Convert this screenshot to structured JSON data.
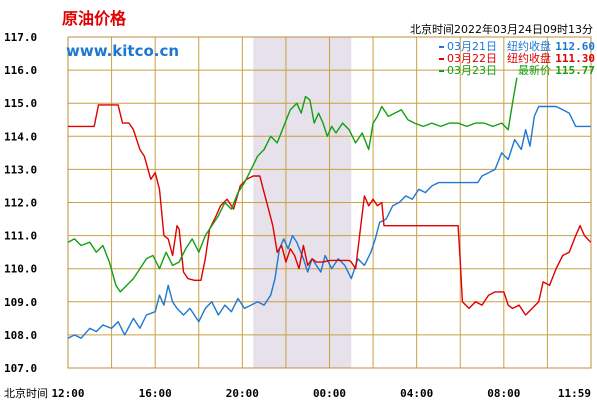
{
  "title": "原油价格",
  "brand": "www.kitco.cn",
  "timestamp": "北京时间2022年03月24日09时13分",
  "chart_data": {
    "type": "line",
    "xlabel": "北京时间",
    "x_ticks": [
      "12:00",
      "16:00",
      "20:00",
      "00:00",
      "04:00",
      "08:00",
      "11:59"
    ],
    "ylim": [
      107.0,
      117.0
    ],
    "y_ticks": [
      "107.0",
      "108.0",
      "109.0",
      "110.0",
      "111.0",
      "112.0",
      "113.0",
      "114.0",
      "115.0",
      "116.0",
      "117.0"
    ],
    "grid": true,
    "shaded_range_hours": [
      8.5,
      13.0
    ],
    "legend_position": "top-right",
    "series": [
      {
        "date": "03月21日",
        "label": "纽约收盘",
        "value": "112.60",
        "color": "#1e78d2",
        "points": [
          [
            0,
            107.9
          ],
          [
            0.3,
            108.0
          ],
          [
            0.6,
            107.9
          ],
          [
            1.0,
            108.2
          ],
          [
            1.3,
            108.1
          ],
          [
            1.6,
            108.3
          ],
          [
            2.0,
            108.2
          ],
          [
            2.3,
            108.4
          ],
          [
            2.6,
            108.0
          ],
          [
            3.0,
            108.5
          ],
          [
            3.3,
            108.2
          ],
          [
            3.6,
            108.6
          ],
          [
            4.0,
            108.7
          ],
          [
            4.2,
            109.2
          ],
          [
            4.4,
            108.9
          ],
          [
            4.6,
            109.5
          ],
          [
            4.8,
            109.0
          ],
          [
            5.0,
            108.8
          ],
          [
            5.3,
            108.6
          ],
          [
            5.6,
            108.8
          ],
          [
            6.0,
            108.4
          ],
          [
            6.3,
            108.8
          ],
          [
            6.6,
            109.0
          ],
          [
            6.9,
            108.6
          ],
          [
            7.2,
            108.9
          ],
          [
            7.5,
            108.7
          ],
          [
            7.8,
            109.1
          ],
          [
            8.1,
            108.8
          ],
          [
            8.4,
            108.9
          ],
          [
            8.7,
            109.0
          ],
          [
            9.0,
            108.9
          ],
          [
            9.3,
            109.2
          ],
          [
            9.5,
            109.7
          ],
          [
            9.7,
            110.6
          ],
          [
            9.9,
            110.9
          ],
          [
            10.1,
            110.6
          ],
          [
            10.3,
            111.0
          ],
          [
            10.5,
            110.8
          ],
          [
            10.8,
            110.3
          ],
          [
            11.0,
            109.9
          ],
          [
            11.2,
            110.3
          ],
          [
            11.4,
            110.1
          ],
          [
            11.6,
            109.9
          ],
          [
            11.8,
            110.4
          ],
          [
            12.1,
            110.0
          ],
          [
            12.4,
            110.3
          ],
          [
            12.7,
            110.1
          ],
          [
            13.0,
            109.7
          ],
          [
            13.3,
            110.3
          ],
          [
            13.6,
            110.1
          ],
          [
            13.9,
            110.5
          ],
          [
            14.1,
            110.9
          ],
          [
            14.3,
            111.4
          ],
          [
            14.6,
            111.5
          ],
          [
            14.9,
            111.9
          ],
          [
            15.2,
            112.0
          ],
          [
            15.5,
            112.2
          ],
          [
            15.8,
            112.1
          ],
          [
            16.1,
            112.4
          ],
          [
            16.4,
            112.3
          ],
          [
            16.7,
            112.5
          ],
          [
            17.0,
            112.6
          ],
          [
            17.5,
            112.6
          ],
          [
            18.0,
            112.6
          ],
          [
            18.5,
            112.6
          ],
          [
            18.8,
            112.6
          ],
          [
            19.0,
            112.8
          ],
          [
            19.3,
            112.9
          ],
          [
            19.6,
            113.0
          ],
          [
            19.9,
            113.5
          ],
          [
            20.2,
            113.3
          ],
          [
            20.5,
            113.9
          ],
          [
            20.8,
            113.6
          ],
          [
            21.0,
            114.2
          ],
          [
            21.2,
            113.7
          ],
          [
            21.4,
            114.6
          ],
          [
            21.6,
            114.9
          ],
          [
            22.0,
            114.9
          ],
          [
            22.4,
            114.9
          ],
          [
            22.7,
            114.8
          ],
          [
            23.0,
            114.7
          ],
          [
            23.3,
            114.3
          ],
          [
            23.98,
            114.3
          ]
        ]
      },
      {
        "date": "03月22日",
        "label": "纽约收盘",
        "value": "111.30",
        "color": "#e00000",
        "points": [
          [
            0,
            114.3
          ],
          [
            1.2,
            114.3
          ],
          [
            1.4,
            114.95
          ],
          [
            2.0,
            114.95
          ],
          [
            2.3,
            114.95
          ],
          [
            2.5,
            114.4
          ],
          [
            2.8,
            114.4
          ],
          [
            3.0,
            114.2
          ],
          [
            3.3,
            113.6
          ],
          [
            3.5,
            113.4
          ],
          [
            3.8,
            112.7
          ],
          [
            4.0,
            112.9
          ],
          [
            4.2,
            112.4
          ],
          [
            4.4,
            111.0
          ],
          [
            4.6,
            110.9
          ],
          [
            4.8,
            110.4
          ],
          [
            5.0,
            111.3
          ],
          [
            5.1,
            111.2
          ],
          [
            5.3,
            109.9
          ],
          [
            5.5,
            109.7
          ],
          [
            5.8,
            109.65
          ],
          [
            6.1,
            109.65
          ],
          [
            6.3,
            110.3
          ],
          [
            6.5,
            111.2
          ],
          [
            6.8,
            111.6
          ],
          [
            7.0,
            111.9
          ],
          [
            7.3,
            112.1
          ],
          [
            7.6,
            111.8
          ],
          [
            7.9,
            112.5
          ],
          [
            8.2,
            112.7
          ],
          [
            8.5,
            112.8
          ],
          [
            8.8,
            112.8
          ],
          [
            9.0,
            112.3
          ],
          [
            9.2,
            111.8
          ],
          [
            9.4,
            111.3
          ],
          [
            9.6,
            110.5
          ],
          [
            9.8,
            110.7
          ],
          [
            10.0,
            110.2
          ],
          [
            10.2,
            110.6
          ],
          [
            10.4,
            110.4
          ],
          [
            10.6,
            110.0
          ],
          [
            10.8,
            110.7
          ],
          [
            11.0,
            110.1
          ],
          [
            11.2,
            110.3
          ],
          [
            11.4,
            110.2
          ],
          [
            11.7,
            110.2
          ],
          [
            12.0,
            110.25
          ],
          [
            12.3,
            110.25
          ],
          [
            12.6,
            110.25
          ],
          [
            12.9,
            110.25
          ],
          [
            13.0,
            110.2
          ],
          [
            13.2,
            110.0
          ],
          [
            13.4,
            111.1
          ],
          [
            13.6,
            112.2
          ],
          [
            13.8,
            111.9
          ],
          [
            14.0,
            112.1
          ],
          [
            14.2,
            111.9
          ],
          [
            14.4,
            112.0
          ],
          [
            14.5,
            111.3
          ],
          [
            15.0,
            111.3
          ],
          [
            16.0,
            111.3
          ],
          [
            17.0,
            111.3
          ],
          [
            17.9,
            111.3
          ],
          [
            18.0,
            110.2
          ],
          [
            18.1,
            109.0
          ],
          [
            18.4,
            108.8
          ],
          [
            18.7,
            109.0
          ],
          [
            19.0,
            108.9
          ],
          [
            19.3,
            109.2
          ],
          [
            19.6,
            109.3
          ],
          [
            20.0,
            109.3
          ],
          [
            20.2,
            108.9
          ],
          [
            20.4,
            108.8
          ],
          [
            20.7,
            108.9
          ],
          [
            21.0,
            108.6
          ],
          [
            21.3,
            108.8
          ],
          [
            21.6,
            109.0
          ],
          [
            21.8,
            109.6
          ],
          [
            22.1,
            109.5
          ],
          [
            22.4,
            110.0
          ],
          [
            22.7,
            110.4
          ],
          [
            23.0,
            110.5
          ],
          [
            23.3,
            111.0
          ],
          [
            23.5,
            111.3
          ],
          [
            23.7,
            111.0
          ],
          [
            23.98,
            110.8
          ]
        ]
      },
      {
        "date": "03月23日",
        "label": "最新价",
        "value": "115.77",
        "color": "#12a012",
        "points": [
          [
            0,
            110.8
          ],
          [
            0.3,
            110.9
          ],
          [
            0.6,
            110.7
          ],
          [
            1.0,
            110.8
          ],
          [
            1.3,
            110.5
          ],
          [
            1.6,
            110.7
          ],
          [
            1.9,
            110.2
          ],
          [
            2.2,
            109.5
          ],
          [
            2.4,
            109.3
          ],
          [
            2.7,
            109.5
          ],
          [
            3.0,
            109.7
          ],
          [
            3.3,
            110.0
          ],
          [
            3.6,
            110.3
          ],
          [
            3.9,
            110.4
          ],
          [
            4.2,
            110.0
          ],
          [
            4.5,
            110.5
          ],
          [
            4.8,
            110.1
          ],
          [
            5.1,
            110.2
          ],
          [
            5.4,
            110.6
          ],
          [
            5.7,
            110.9
          ],
          [
            6.0,
            110.5
          ],
          [
            6.3,
            111.0
          ],
          [
            6.6,
            111.3
          ],
          [
            6.9,
            111.6
          ],
          [
            7.2,
            112.0
          ],
          [
            7.5,
            111.8
          ],
          [
            7.8,
            112.3
          ],
          [
            8.1,
            112.6
          ],
          [
            8.4,
            113.0
          ],
          [
            8.7,
            113.4
          ],
          [
            9.0,
            113.6
          ],
          [
            9.3,
            114.0
          ],
          [
            9.6,
            113.8
          ],
          [
            9.9,
            114.3
          ],
          [
            10.2,
            114.8
          ],
          [
            10.5,
            115.0
          ],
          [
            10.7,
            114.7
          ],
          [
            10.9,
            115.2
          ],
          [
            11.1,
            115.1
          ],
          [
            11.3,
            114.4
          ],
          [
            11.5,
            114.7
          ],
          [
            11.7,
            114.4
          ],
          [
            11.9,
            114.0
          ],
          [
            12.1,
            114.3
          ],
          [
            12.3,
            114.1
          ],
          [
            12.6,
            114.4
          ],
          [
            12.9,
            114.2
          ],
          [
            13.2,
            113.8
          ],
          [
            13.5,
            114.1
          ],
          [
            13.8,
            113.6
          ],
          [
            14.0,
            114.4
          ],
          [
            14.2,
            114.6
          ],
          [
            14.4,
            114.9
          ],
          [
            14.7,
            114.6
          ],
          [
            15.0,
            114.7
          ],
          [
            15.3,
            114.8
          ],
          [
            15.6,
            114.5
          ],
          [
            15.9,
            114.4
          ],
          [
            16.3,
            114.3
          ],
          [
            16.7,
            114.4
          ],
          [
            17.1,
            114.3
          ],
          [
            17.5,
            114.4
          ],
          [
            17.9,
            114.4
          ],
          [
            18.3,
            114.3
          ],
          [
            18.7,
            114.4
          ],
          [
            19.1,
            114.4
          ],
          [
            19.5,
            114.3
          ],
          [
            19.9,
            114.4
          ],
          [
            20.2,
            114.2
          ],
          [
            20.4,
            115.0
          ],
          [
            20.6,
            115.77
          ]
        ]
      }
    ]
  }
}
